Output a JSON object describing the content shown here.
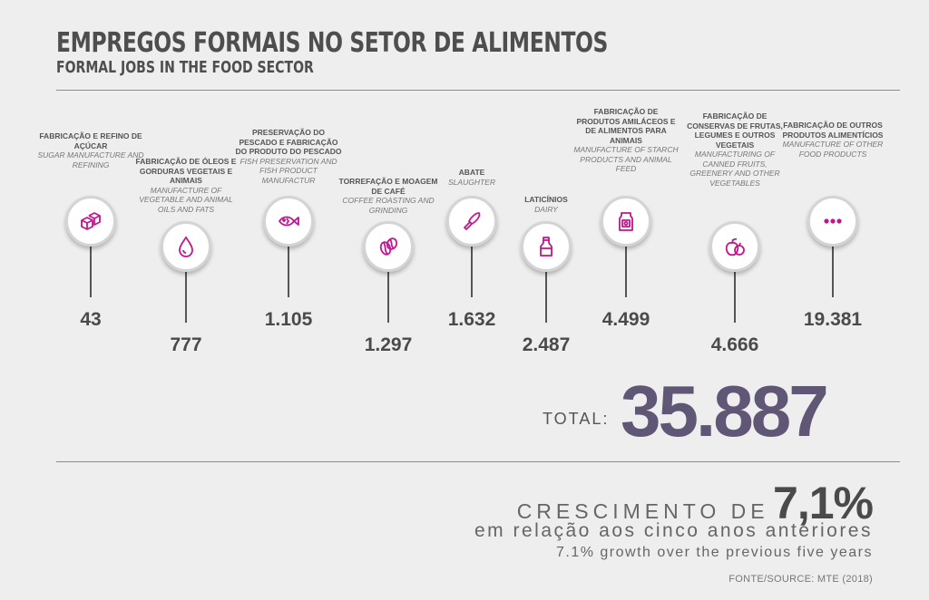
{
  "header": {
    "title": "EMPREGOS FORMAIS NO SETOR DE ALIMENTOS",
    "subtitle": "FORMAL JOBS IN THE FOOD SECTOR"
  },
  "accent_color": "#c0168e",
  "total_color": "#5f5775",
  "categories": [
    {
      "pt": "FABRICAÇÃO E REFINO DE AÇÚCAR",
      "en": "SUGAR MANUFACTURE AND REFINING",
      "value": "43",
      "icon": "sugar-cubes-icon"
    },
    {
      "pt": "FABRICAÇÃO DE ÓLEOS E GORDURAS VEGETAIS E ANIMAIS",
      "en": "MANUFACTURE OF VEGETABLE AND ANIMAL OILS AND FATS",
      "value": "777",
      "icon": "oil-drop-icon"
    },
    {
      "pt": "PRESERVAÇÃO DO PESCADO E FABRICAÇÃO DO PRODUTO DO PESCADO",
      "en": "FISH PRESERVATION AND FISH PRODUCT MANUFACTUR",
      "value": "1.105",
      "icon": "fish-icon"
    },
    {
      "pt": "TORREFAÇÃO E MOAGEM DE CAFÉ",
      "en": "COFFEE ROASTING AND GRINDING",
      "value": "1.297",
      "icon": "coffee-bean-icon"
    },
    {
      "pt": "ABATE",
      "en": "SLAUGHTER",
      "value": "1.632",
      "icon": "knife-icon"
    },
    {
      "pt": "LATICÍNIOS",
      "en": "DAIRY",
      "value": "2.487",
      "icon": "milk-bottle-icon"
    },
    {
      "pt": "FABRICAÇÃO DE PRODUTOS AMILÁCEOS E DE ALIMENTOS PARA ANIMAIS",
      "en": "MANUFACTURE OF STARCH PRODUCTS AND ANIMAL FEED",
      "value": "4.499",
      "icon": "feed-bag-icon"
    },
    {
      "pt": "FABRICAÇÃO DE CONSERVAS DE FRUTAS, LEGUMES E OUTROS VEGETAIS",
      "en": "MANUFACTURING OF CANNED FRUITS, GREENERY AND OTHER VEGETABLES",
      "value": "4.666",
      "icon": "fruits-icon"
    },
    {
      "pt": "FABRICAÇÃO DE OUTROS PRODUTOS ALIMENTÍCIOS",
      "en": "MANUFACTURE OF OTHER FOOD PRODUCTS",
      "value": "19.381",
      "icon": "more-dots-icon"
    }
  ],
  "total": {
    "label": "TOTAL:",
    "value": "35.887"
  },
  "growth": {
    "prefix": "CRESCIMENTO DE",
    "percent": "7,1%",
    "pt": "em relação aos cinco anos anteriores",
    "en": "7.1% growth over the previous five years"
  },
  "source": "FONTE/SOURCE: MTE (2018)"
}
